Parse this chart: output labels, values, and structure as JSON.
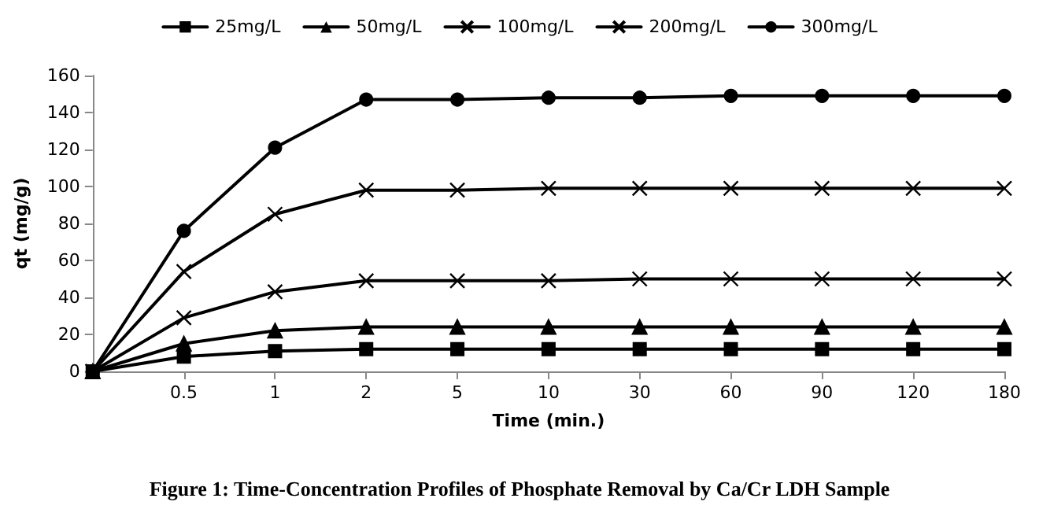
{
  "chart_data": {
    "type": "line",
    "title": "Figure 1: Time-Concentration Profiles of Phosphate Removal by Ca/Cr LDH Sample",
    "xlabel": "Time (min.)",
    "ylabel": "qt (mg/g)",
    "categories": [
      null,
      "0.5",
      "1",
      "2",
      "5",
      "10",
      "30",
      "60",
      "90",
      "120",
      "180"
    ],
    "series": [
      {
        "name": "25mg/L",
        "color": "#000000",
        "marker": "square",
        "values": [
          0,
          8,
          11,
          12,
          12,
          12,
          12,
          12,
          12,
          12,
          12
        ]
      },
      {
        "name": "50mg/L",
        "color": "#000000",
        "marker": "triangle",
        "values": [
          0,
          15,
          22,
          24,
          24,
          24,
          24,
          24,
          24,
          24,
          24
        ]
      },
      {
        "name": "100mg/L",
        "color": "#000000",
        "marker": "cross",
        "values": [
          0,
          29,
          43,
          49,
          49,
          49,
          50,
          50,
          50,
          50,
          50
        ]
      },
      {
        "name": "200mg/L",
        "color": "#000000",
        "marker": "cross",
        "values": [
          0,
          54,
          85,
          98,
          98,
          99,
          99,
          99,
          99,
          99,
          99
        ]
      },
      {
        "name": "300mg/L",
        "color": "#000000",
        "marker": "circle",
        "values": [
          0,
          76,
          121,
          147,
          147,
          148,
          148,
          149,
          149,
          149,
          149
        ]
      }
    ],
    "ylim": [
      0,
      160
    ],
    "yticks": [
      0,
      20,
      40,
      60,
      80,
      100,
      120,
      140,
      160
    ],
    "grid": false,
    "legend": "top",
    "line_style": "solid"
  }
}
